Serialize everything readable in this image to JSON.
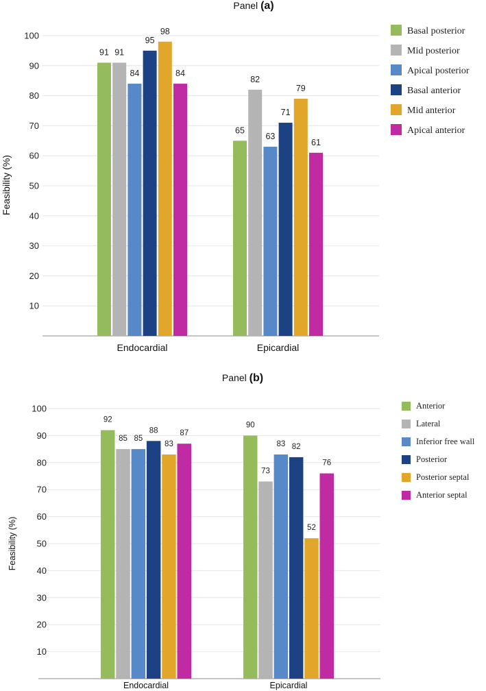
{
  "chart_data": [
    {
      "type": "bar",
      "title_prefix": "Panel",
      "title_tag": "(a)",
      "ylabel": "Feasibility (%)",
      "ylim": [
        0,
        100
      ],
      "yticks": [
        10,
        20,
        30,
        40,
        50,
        60,
        70,
        80,
        90,
        100
      ],
      "grid": true,
      "legend_position": "right",
      "categories": [
        "Endocardial",
        "Epicardial"
      ],
      "series": [
        {
          "name": "Basal posterior",
          "color": "#94bb5c",
          "values": [
            91,
            65
          ]
        },
        {
          "name": "Mid posterior",
          "color": "#b4b4b4",
          "values": [
            91,
            82
          ]
        },
        {
          "name": "Apical posterior",
          "color": "#5788c8",
          "values": [
            84,
            63
          ]
        },
        {
          "name": "Basal anterior",
          "color": "#1c4283",
          "values": [
            95,
            71
          ]
        },
        {
          "name": "Mid anterior",
          "color": "#e2a72a",
          "values": [
            98,
            79
          ]
        },
        {
          "name": "Apical anterior",
          "color": "#c02ba3",
          "values": [
            84,
            61
          ]
        }
      ]
    },
    {
      "type": "bar",
      "title_prefix": "Panel",
      "title_tag": "(b)",
      "ylabel": "Feasibility (%)",
      "ylim": [
        0,
        100
      ],
      "yticks": [
        10,
        20,
        30,
        40,
        50,
        60,
        70,
        80,
        90,
        100
      ],
      "grid": true,
      "legend_position": "right",
      "categories": [
        "Endocardial",
        "Epicardial"
      ],
      "series": [
        {
          "name": "Anterior",
          "color": "#94bb5c",
          "values": [
            92,
            90
          ]
        },
        {
          "name": "Lateral",
          "color": "#b4b4b4",
          "values": [
            85,
            73
          ]
        },
        {
          "name": "Inferior free wall",
          "color": "#5788c8",
          "values": [
            85,
            83
          ]
        },
        {
          "name": "Posterior",
          "color": "#1c4283",
          "values": [
            88,
            82
          ]
        },
        {
          "name": "Posterior septal",
          "color": "#e2a72a",
          "values": [
            83,
            52
          ]
        },
        {
          "name": "Anterior septal",
          "color": "#c02ba3",
          "values": [
            87,
            76
          ]
        }
      ]
    }
  ]
}
